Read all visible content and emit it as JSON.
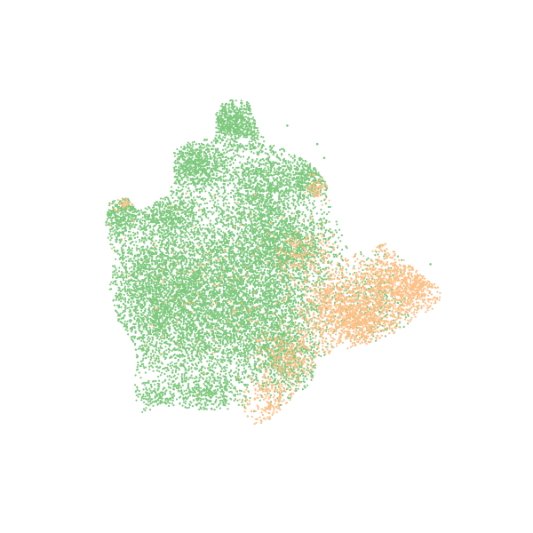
{
  "chart_data": {
    "type": "scatter",
    "title": "",
    "xlabel": "",
    "ylabel": "",
    "axes_visible": false,
    "grid": false,
    "legend": "none",
    "xlim": [
      0,
      100
    ],
    "ylim": [
      0,
      100
    ],
    "series": [
      {
        "color": "#7fc97f",
        "point_count": 14000,
        "clusters": [
          {
            "cx": 43.0,
            "cy": 81.0,
            "sx": 3.2,
            "sy": 2.6,
            "w": 5
          },
          {
            "cx": 35.0,
            "cy": 72.0,
            "sx": 3.8,
            "sy": 3.2,
            "w": 6
          },
          {
            "cx": 49.0,
            "cy": 67.0,
            "sx": 4.0,
            "sy": 5.5,
            "w": 8
          },
          {
            "cx": 59.0,
            "cy": 69.0,
            "sx": 3.2,
            "sy": 2.6,
            "w": 3
          },
          {
            "cx": 19.0,
            "cy": 62.0,
            "sx": 2.8,
            "sy": 3.0,
            "w": 3
          },
          {
            "cx": 29.0,
            "cy": 61.0,
            "sx": 3.2,
            "sy": 2.6,
            "w": 3
          },
          {
            "cx": 42.0,
            "cy": 48.0,
            "sx": 12.0,
            "sy": 9.0,
            "w": 34
          },
          {
            "cx": 31.0,
            "cy": 38.0,
            "sx": 8.5,
            "sy": 8.0,
            "w": 14
          },
          {
            "cx": 25.0,
            "cy": 47.0,
            "sx": 5.0,
            "sy": 6.0,
            "w": 7
          },
          {
            "cx": 55.0,
            "cy": 55.0,
            "sx": 5.0,
            "sy": 4.0,
            "w": 6
          },
          {
            "cx": 50.0,
            "cy": 36.0,
            "sx": 6.0,
            "sy": 6.0,
            "w": 8
          },
          {
            "cx": 37.0,
            "cy": 23.0,
            "sx": 4.5,
            "sy": 2.2,
            "w": 3
          },
          {
            "cx": 55.0,
            "cy": 28.0,
            "sx": 4.0,
            "sy": 3.5,
            "w": 3
          },
          {
            "cx": 74.0,
            "cy": 42.0,
            "sx": 3.5,
            "sy": 4.0,
            "w": 2
          },
          {
            "cx": 26.0,
            "cy": 22.0,
            "sx": 2.5,
            "sy": 1.5,
            "w": 1
          }
        ]
      },
      {
        "color": "#fdc086",
        "point_count": 3200,
        "clusters": [
          {
            "cx": 66.0,
            "cy": 41.0,
            "sx": 4.5,
            "sy": 4.5,
            "w": 30
          },
          {
            "cx": 76.0,
            "cy": 47.0,
            "sx": 3.5,
            "sy": 5.5,
            "w": 20
          },
          {
            "cx": 82.0,
            "cy": 45.0,
            "sx": 3.0,
            "sy": 3.0,
            "w": 14
          },
          {
            "cx": 71.0,
            "cy": 37.0,
            "sx": 3.0,
            "sy": 2.5,
            "w": 10
          },
          {
            "cx": 55.0,
            "cy": 30.0,
            "sx": 3.5,
            "sy": 3.5,
            "w": 10
          },
          {
            "cx": 50.0,
            "cy": 21.0,
            "sx": 2.5,
            "sy": 2.5,
            "w": 6
          },
          {
            "cx": 58.0,
            "cy": 53.0,
            "sx": 3.5,
            "sy": 3.0,
            "w": 6
          },
          {
            "cx": 61.0,
            "cy": 67.0,
            "sx": 1.2,
            "sy": 1.5,
            "w": 2
          },
          {
            "cx": 19.0,
            "cy": 64.0,
            "sx": 1.0,
            "sy": 1.0,
            "w": 1
          },
          {
            "cx": 40.0,
            "cy": 45.0,
            "sx": 10.0,
            "sy": 9.0,
            "w": 5
          }
        ]
      }
    ]
  }
}
